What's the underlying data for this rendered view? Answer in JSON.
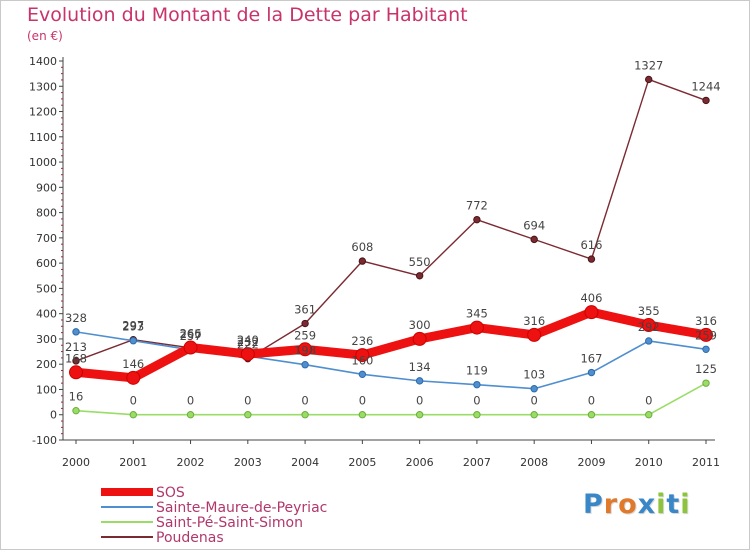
{
  "title": "Evolution du Montant de la Dette par Habitant",
  "subtitle": "(en €)",
  "logo": {
    "text": "Proxiti",
    "colors": [
      "#3a87c8",
      "#e0792a",
      "#e0792a",
      "#3a87c8",
      "#8cc43c",
      "#3a87c8",
      "#8cc43c"
    ]
  },
  "chart_data": {
    "type": "line",
    "x": [
      "2000",
      "2001",
      "2002",
      "2003",
      "2004",
      "2005",
      "2006",
      "2007",
      "2008",
      "2009",
      "2010",
      "2011"
    ],
    "ylim": [
      -100,
      1400
    ],
    "yticks": [
      -100,
      0,
      100,
      200,
      300,
      400,
      500,
      600,
      700,
      800,
      900,
      1000,
      1100,
      1200,
      1300,
      1400
    ],
    "grid": false,
    "legend_position": "bottom-left",
    "series": [
      {
        "name": "SOS",
        "color": "#ee1111",
        "values": [
          168,
          146,
          266,
          240,
          259,
          236,
          300,
          345,
          316,
          406,
          355,
          316
        ],
        "labels": [
          "168",
          "146",
          "266",
          "240",
          "259",
          "236",
          "300",
          "345",
          "316",
          "406",
          "355",
          "316"
        ]
      },
      {
        "name": "Sainte-Maure-de-Peyriac",
        "color": "#4f8fd0",
        "values": [
          328,
          293,
          257,
          232,
          198,
          160,
          134,
          119,
          103,
          167,
          292,
          259
        ],
        "labels": [
          "328",
          "293",
          "257",
          "232",
          "198",
          "160",
          "134",
          "119",
          "103",
          "167",
          "292",
          "259"
        ]
      },
      {
        "name": "Saint-Pé-Saint-Simon",
        "color": "#99dd66",
        "values": [
          16,
          0,
          0,
          0,
          0,
          0,
          0,
          0,
          0,
          0,
          0,
          125
        ],
        "labels": [
          "16",
          "0",
          "0",
          "0",
          "0",
          "0",
          "0",
          "0",
          "0",
          "0",
          "0",
          "125"
        ]
      },
      {
        "name": "Poudenas",
        "color": "#7b2a32",
        "values": [
          213,
          297,
          265,
          222,
          361,
          608,
          550,
          772,
          694,
          616,
          1327,
          1244
        ],
        "labels": [
          "213",
          "297",
          "265",
          "222",
          "361",
          "608",
          "550",
          "772",
          "694",
          "616",
          "1327",
          "1244"
        ]
      }
    ]
  }
}
